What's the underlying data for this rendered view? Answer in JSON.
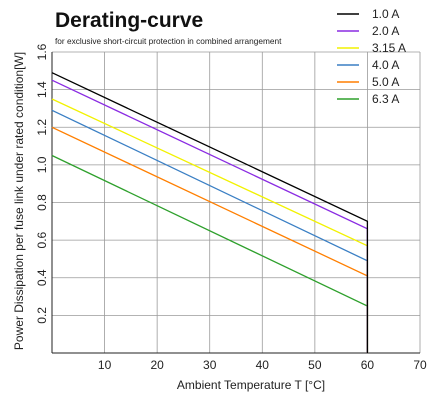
{
  "chart_data": {
    "type": "line",
    "title": "Derating-curve",
    "subtitle": "for exclusive short-circuit protection in combined arrangement",
    "xlabel": "Ambient Temperature T [°C]",
    "ylabel": "Power Dissipation per fuse link under rated condition[W]",
    "xlim": [
      0,
      70
    ],
    "ylim": [
      0,
      1.6
    ],
    "x_ticks": [
      "10",
      "20",
      "30",
      "40",
      "50",
      "60",
      "70"
    ],
    "y_ticks": [
      "0.2",
      "0.4",
      "0.6",
      "0.8",
      "1.0",
      "1.2",
      "1.4",
      "1.6"
    ],
    "grid": true,
    "legend_position": "top-right",
    "series": [
      {
        "name": "1.0 A",
        "color": "#000000",
        "x": [
          0,
          60,
          60
        ],
        "y": [
          1.49,
          0.7,
          0
        ]
      },
      {
        "name": "2.0 A",
        "color": "#8a2be2",
        "x": [
          0,
          60,
          60
        ],
        "y": [
          1.45,
          0.66,
          0
        ]
      },
      {
        "name": "3.15 A",
        "color": "#f2f200",
        "x": [
          0,
          60,
          60
        ],
        "y": [
          1.35,
          0.57,
          0
        ]
      },
      {
        "name": "4.0 A",
        "color": "#3a7fc4",
        "x": [
          0,
          60,
          60
        ],
        "y": [
          1.29,
          0.49,
          0
        ]
      },
      {
        "name": "5.0 A",
        "color": "#ff7f00",
        "x": [
          0,
          60,
          60
        ],
        "y": [
          1.2,
          0.41,
          0
        ]
      },
      {
        "name": "6.3 A",
        "color": "#2ea02c",
        "x": [
          0,
          60,
          60
        ],
        "y": [
          1.05,
          0.25,
          0
        ]
      }
    ]
  }
}
